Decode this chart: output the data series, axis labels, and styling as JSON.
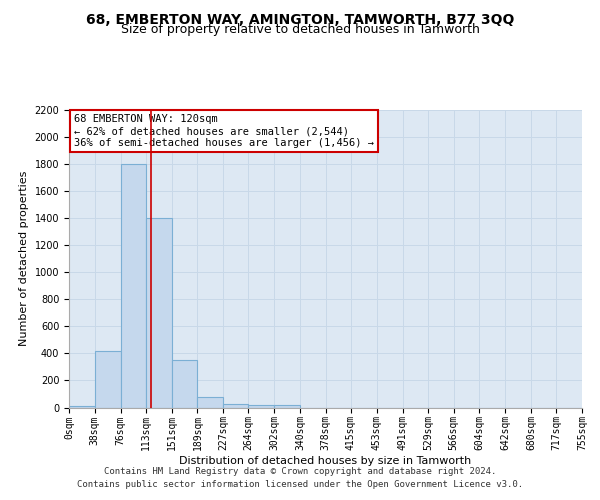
{
  "title": "68, EMBERTON WAY, AMINGTON, TAMWORTH, B77 3QQ",
  "subtitle": "Size of property relative to detached houses in Tamworth",
  "xlabel": "Distribution of detached houses by size in Tamworth",
  "ylabel": "Number of detached properties",
  "bin_edges": [
    0,
    38,
    76,
    113,
    151,
    189,
    227,
    264,
    302,
    340,
    378,
    415,
    453,
    491,
    529,
    566,
    604,
    642,
    680,
    717,
    755
  ],
  "bin_labels": [
    "0sqm",
    "38sqm",
    "76sqm",
    "113sqm",
    "151sqm",
    "189sqm",
    "227sqm",
    "264sqm",
    "302sqm",
    "340sqm",
    "378sqm",
    "415sqm",
    "453sqm",
    "491sqm",
    "529sqm",
    "566sqm",
    "604sqm",
    "642sqm",
    "680sqm",
    "717sqm",
    "755sqm"
  ],
  "counts": [
    10,
    420,
    1800,
    1400,
    350,
    75,
    25,
    20,
    20,
    0,
    0,
    0,
    0,
    0,
    0,
    0,
    0,
    0,
    0,
    0
  ],
  "bar_color": "#c5d8ed",
  "bar_edge_color": "#7bafd4",
  "grid_color": "#c8d8e8",
  "background_color": "#dde8f3",
  "vline_x": 120,
  "vline_color": "#cc0000",
  "annotation_text": "68 EMBERTON WAY: 120sqm\n← 62% of detached houses are smaller (2,544)\n36% of semi-detached houses are larger (1,456) →",
  "annotation_box_color": "#ffffff",
  "annotation_box_edge": "#cc0000",
  "ylim": [
    0,
    2200
  ],
  "yticks": [
    0,
    200,
    400,
    600,
    800,
    1000,
    1200,
    1400,
    1600,
    1800,
    2000,
    2200
  ],
  "footer_line1": "Contains HM Land Registry data © Crown copyright and database right 2024.",
  "footer_line2": "Contains public sector information licensed under the Open Government Licence v3.0.",
  "title_fontsize": 10,
  "subtitle_fontsize": 9,
  "axis_label_fontsize": 8,
  "tick_fontsize": 7,
  "annotation_fontsize": 7.5,
  "footer_fontsize": 6.5
}
